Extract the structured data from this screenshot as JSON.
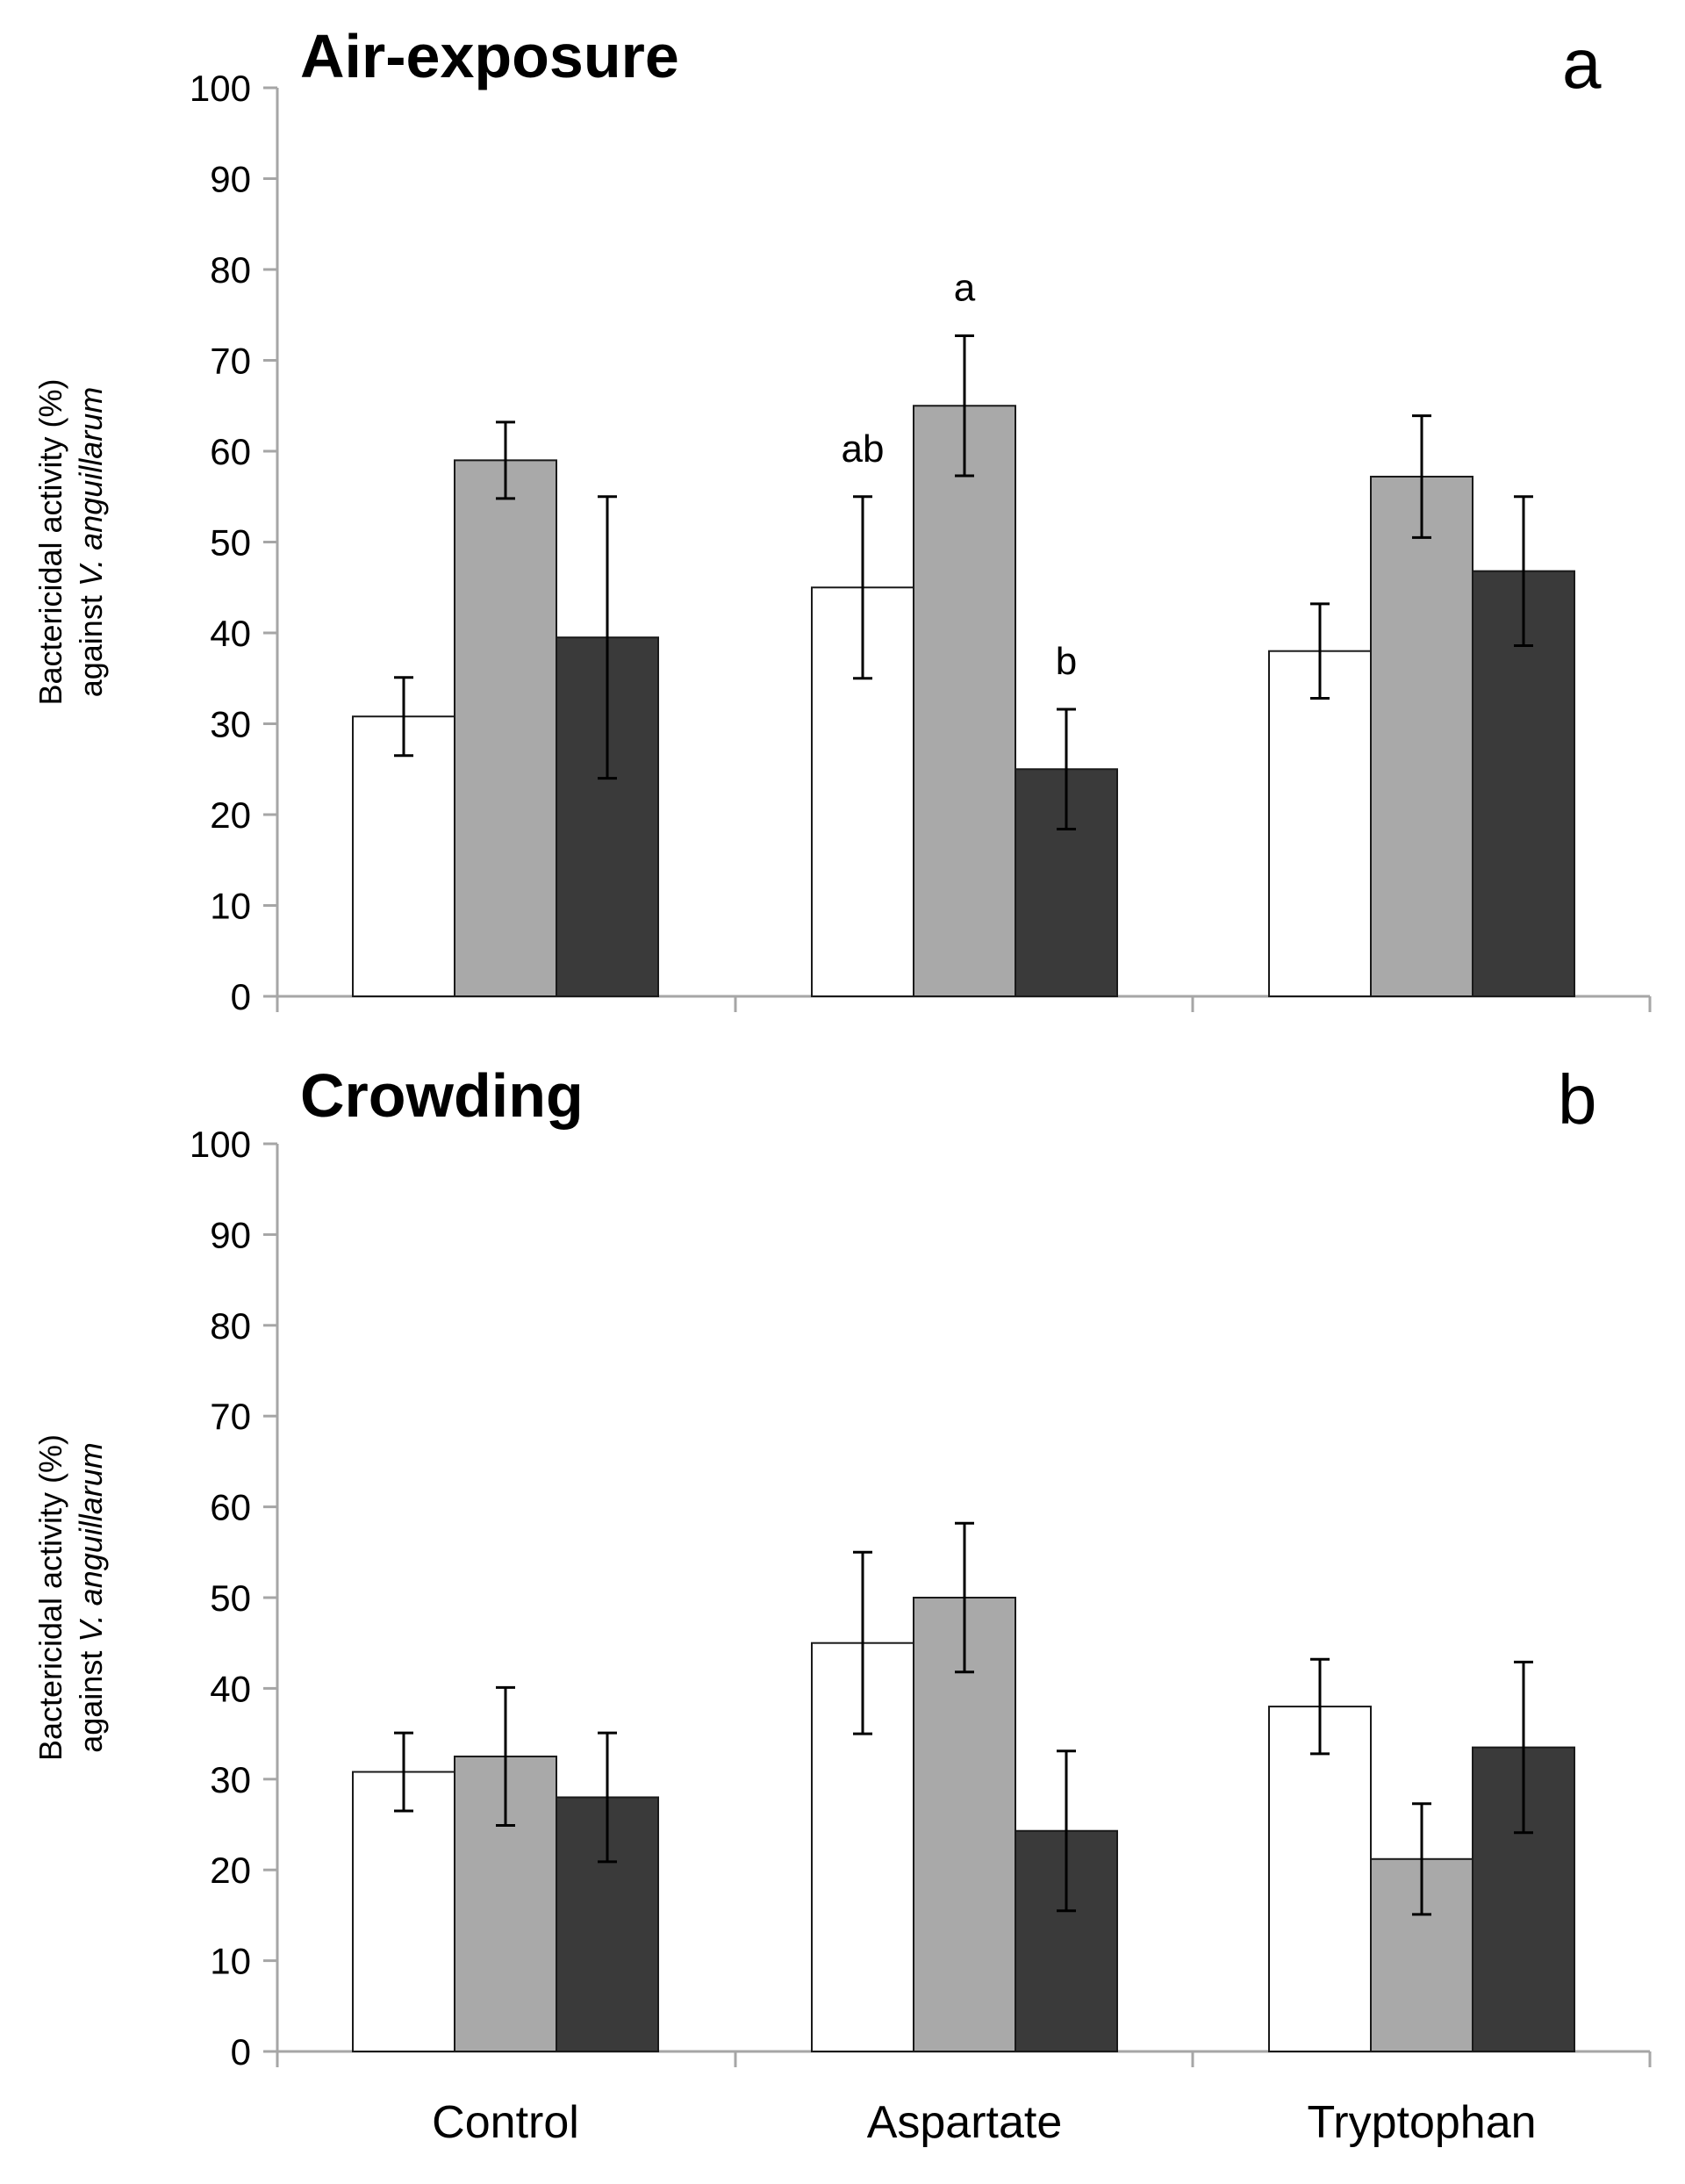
{
  "chart_data": [
    {
      "type": "bar",
      "title": "Air-exposure",
      "panel_label": "a",
      "ylabel_line1": "Bactericidal activity (%)",
      "ylabel_line2_prefix": "against ",
      "ylabel_line2_italic": "V. anguillarum",
      "xlabel": "",
      "ylim": [
        0,
        100
      ],
      "yticks": [
        0,
        10,
        20,
        30,
        40,
        50,
        60,
        70,
        80,
        90,
        100
      ],
      "categories": [
        "Control",
        "Aspartate",
        "Tryptophan"
      ],
      "series": [
        {
          "name": "white",
          "color": "#ffffff",
          "values": [
            30.8,
            45,
            38
          ],
          "errors": [
            4.3,
            10,
            5.2
          ]
        },
        {
          "name": "grey",
          "color": "#a9a9a9",
          "values": [
            59,
            65,
            57.2
          ],
          "errors": [
            4.2,
            7.7,
            6.7
          ]
        },
        {
          "name": "dark",
          "color": "#3a3a3a",
          "values": [
            39.5,
            25,
            46.8
          ],
          "errors": [
            15.5,
            6.6,
            8.2
          ]
        }
      ],
      "annotations": [
        {
          "category": 1,
          "series": 0,
          "text": "ab"
        },
        {
          "category": 1,
          "series": 1,
          "text": "a"
        },
        {
          "category": 1,
          "series": 2,
          "text": "b"
        }
      ]
    },
    {
      "type": "bar",
      "title": "Crowding",
      "panel_label": "b",
      "ylabel_line1": "Bactericidal activity (%)",
      "ylabel_line2_prefix": "against ",
      "ylabel_line2_italic": "V. anguillarum",
      "xlabel": "",
      "ylim": [
        0,
        100
      ],
      "yticks": [
        0,
        10,
        20,
        30,
        40,
        50,
        60,
        70,
        80,
        90,
        100
      ],
      "categories": [
        "Control",
        "Aspartate",
        "Tryptophan"
      ],
      "series": [
        {
          "name": "white",
          "color": "#ffffff",
          "values": [
            30.8,
            45,
            38
          ],
          "errors": [
            4.3,
            10,
            5.2
          ]
        },
        {
          "name": "grey",
          "color": "#a9a9a9",
          "values": [
            32.5,
            50,
            21.2
          ],
          "errors": [
            7.6,
            8.2,
            6.1
          ]
        },
        {
          "name": "dark",
          "color": "#3a3a3a",
          "values": [
            28,
            24.3,
            33.5
          ],
          "errors": [
            7.1,
            8.8,
            9.4
          ]
        }
      ],
      "annotations": []
    }
  ]
}
